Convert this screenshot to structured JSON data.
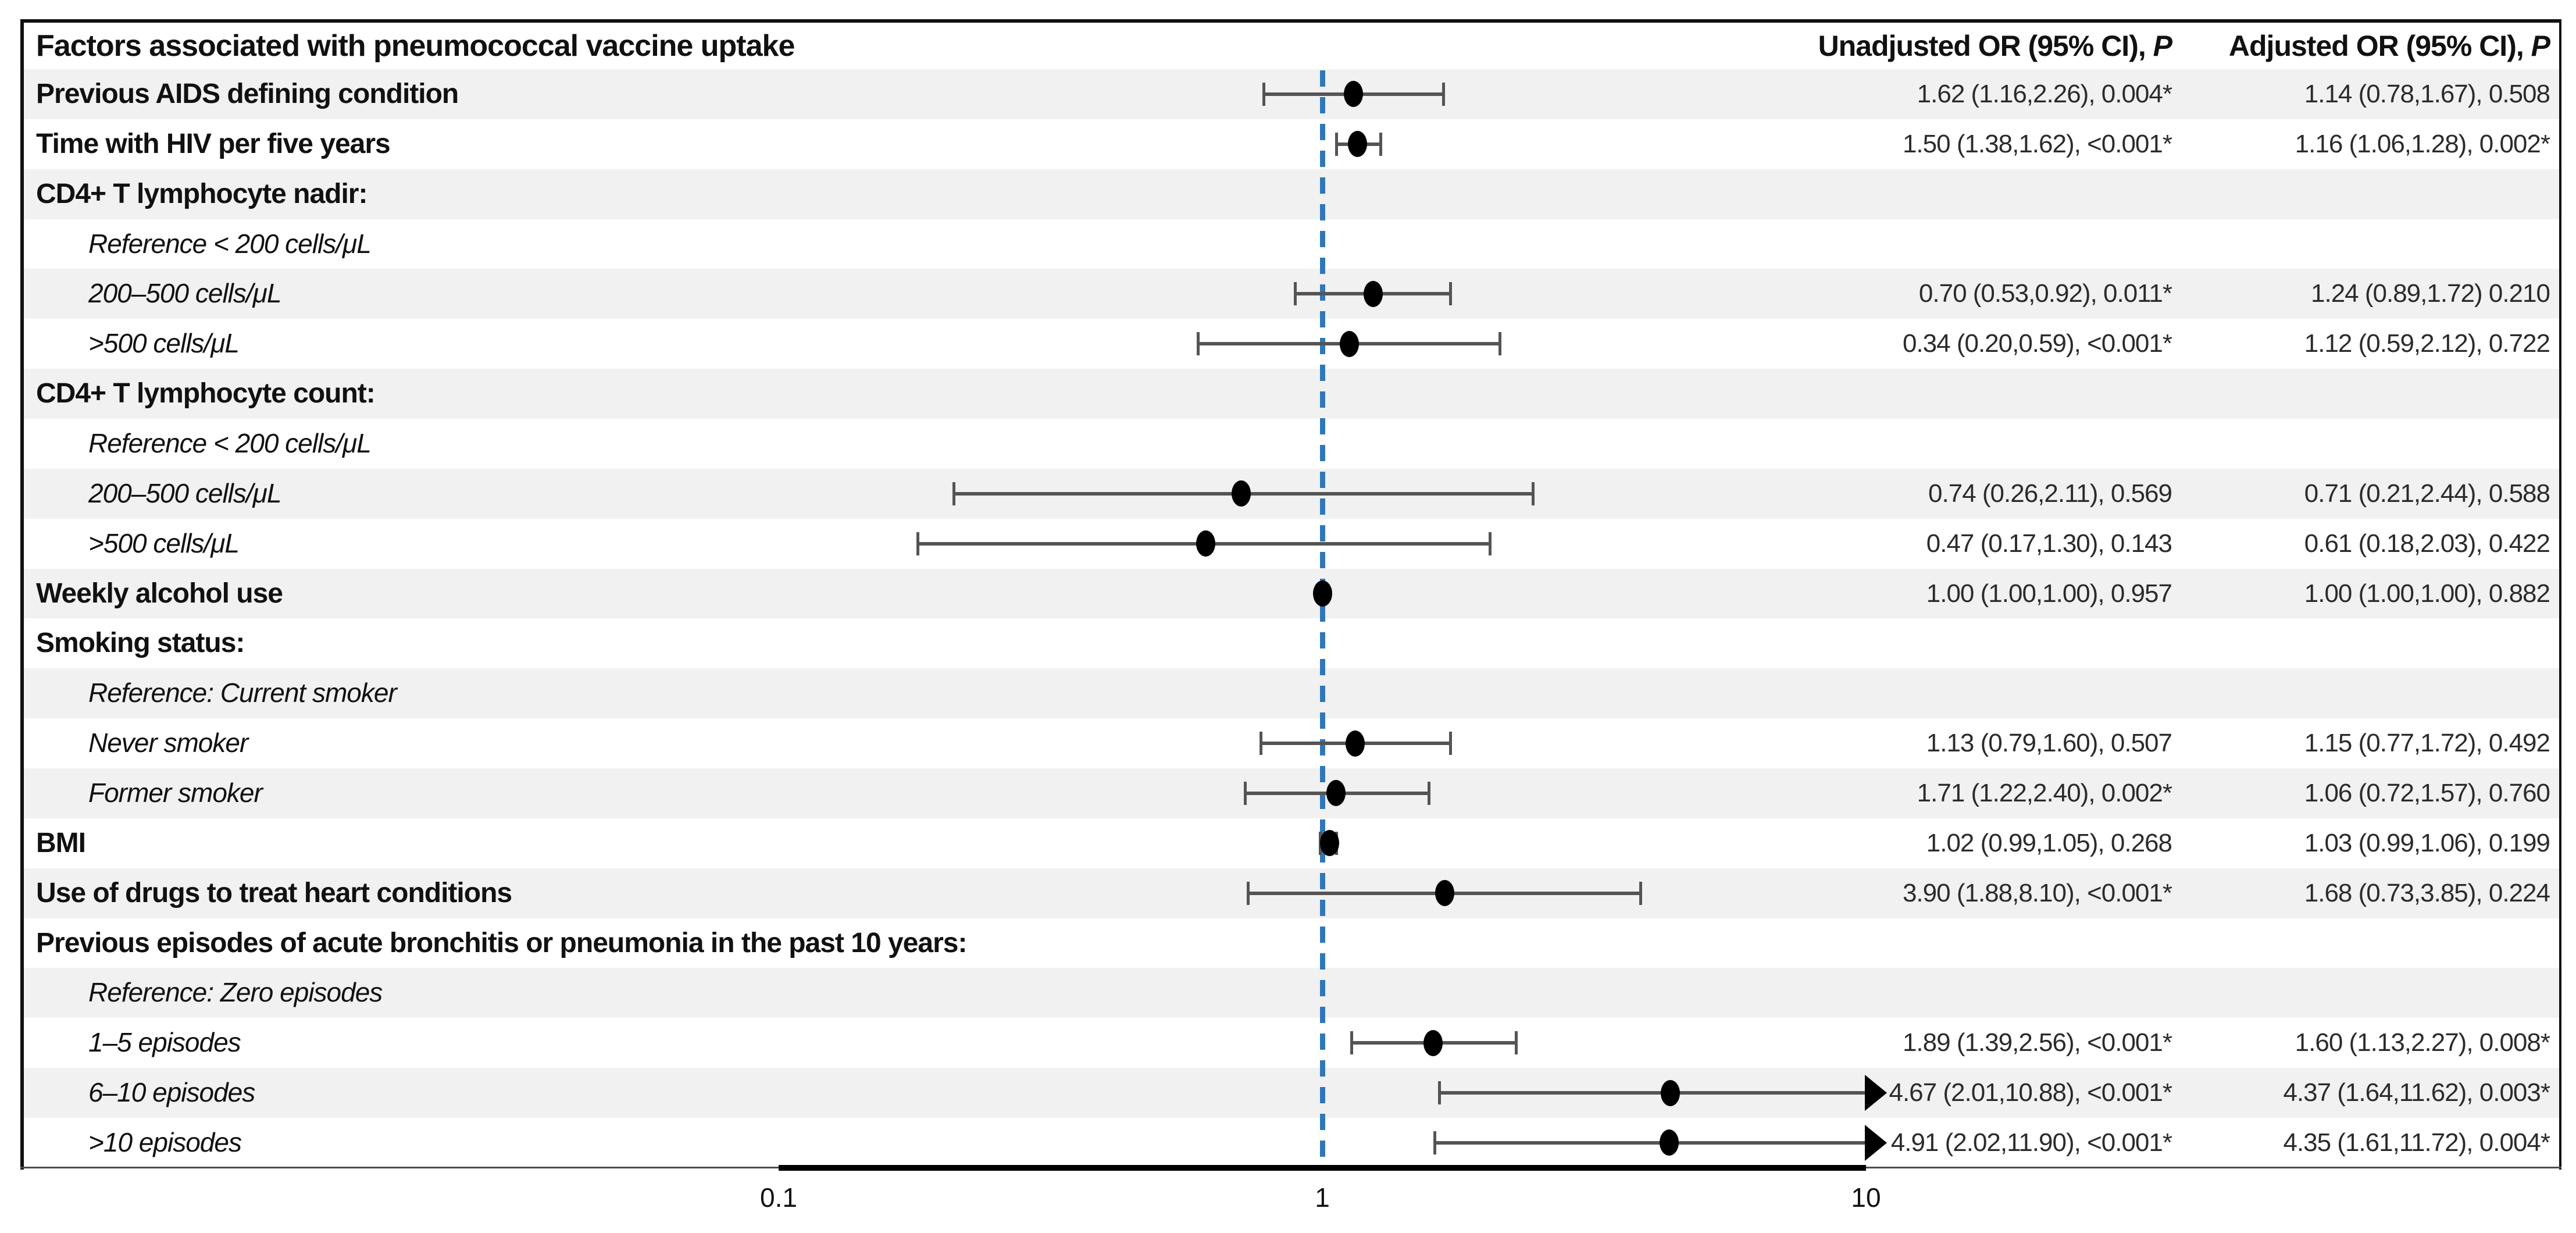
{
  "title": "Factors associated with pneumococcal vaccine uptake",
  "columns": {
    "unadjusted": {
      "prefix": "Unadjusted OR (95% CI), ",
      "p": "P"
    },
    "adjusted": {
      "prefix": "Adjusted OR (95% CI), ",
      "p": "P"
    }
  },
  "axis": {
    "scale": "log10",
    "ticks": [
      "0.1",
      "1",
      "10"
    ],
    "reference_value": 1
  },
  "colors": {
    "reference_line": "#2f77b8",
    "row_shade": "#f1f1f1",
    "marker_point": "#000000",
    "ci_line": "#545454",
    "border": "#111111"
  },
  "chart_data": {
    "type": "forest",
    "title": "Factors associated with pneumococcal vaccine uptake",
    "x_axis": {
      "scale": "log10",
      "ticks": [
        0.1,
        1,
        10
      ],
      "reference": 1,
      "range": [
        0.1,
        10
      ]
    },
    "plotted_estimate": "adjusted OR with 95% CI (arrow = CI clipped at 10)",
    "rows": [
      {
        "label": "Previous AIDS defining condition",
        "style": "bold",
        "shaded": true,
        "unadjusted": "1.62 (1.16,2.26), 0.004*",
        "adjusted": "1.14 (0.78,1.67), 0.508",
        "or": 1.14,
        "lo": 0.78,
        "hi": 1.67
      },
      {
        "label": "Time with HIV per five years",
        "style": "bold",
        "shaded": false,
        "unadjusted": "1.50 (1.38,1.62), <0.001*",
        "adjusted": "1.16 (1.06,1.28), 0.002*",
        "or": 1.16,
        "lo": 1.06,
        "hi": 1.28
      },
      {
        "label": "CD4+ T lymphocyte nadir:",
        "style": "bold",
        "shaded": true
      },
      {
        "label": "Reference < 200 cells/μL",
        "style": "sub",
        "shaded": false
      },
      {
        "label": "200–500 cells/μL",
        "style": "sub",
        "shaded": true,
        "unadjusted": "0.70 (0.53,0.92), 0.011*",
        "adjusted": "1.24 (0.89,1.72) 0.210",
        "or": 1.24,
        "lo": 0.89,
        "hi": 1.72
      },
      {
        "label": ">500 cells/μL",
        "style": "sub",
        "shaded": false,
        "unadjusted": "0.34 (0.20,0.59), <0.001*",
        "adjusted": "1.12 (0.59,2.12), 0.722",
        "or": 1.12,
        "lo": 0.59,
        "hi": 2.12
      },
      {
        "label": "CD4+ T lymphocyte count:",
        "style": "bold",
        "shaded": true
      },
      {
        "label": "Reference < 200 cells/μL",
        "style": "sub",
        "shaded": false
      },
      {
        "label": "200–500 cells/μL",
        "style": "sub",
        "shaded": true,
        "unadjusted": "0.74 (0.26,2.11), 0.569",
        "adjusted": "0.71 (0.21,2.44), 0.588",
        "or": 0.71,
        "lo": 0.21,
        "hi": 2.44
      },
      {
        "label": ">500 cells/μL",
        "style": "sub",
        "shaded": false,
        "unadjusted": "0.47 (0.17,1.30), 0.143",
        "adjusted": "0.61 (0.18,2.03), 0.422",
        "or": 0.61,
        "lo": 0.18,
        "hi": 2.03
      },
      {
        "label": "Weekly alcohol use",
        "style": "bold",
        "shaded": true,
        "unadjusted": "1.00 (1.00,1.00), 0.957",
        "adjusted": "1.00 (1.00,1.00), 0.882",
        "or": 1.0,
        "lo": 1.0,
        "hi": 1.0
      },
      {
        "label": "Smoking status:",
        "style": "bold",
        "shaded": false
      },
      {
        "label": "Reference: Current smoker",
        "style": "sub",
        "shaded": true
      },
      {
        "label": "Never smoker",
        "style": "sub",
        "shaded": false,
        "unadjusted": "1.13 (0.79,1.60), 0.507",
        "adjusted": "1.15 (0.77,1.72), 0.492",
        "or": 1.15,
        "lo": 0.77,
        "hi": 1.72
      },
      {
        "label": "Former smoker",
        "style": "sub",
        "shaded": true,
        "unadjusted": "1.71 (1.22,2.40), 0.002*",
        "adjusted": "1.06 (0.72,1.57), 0.760",
        "or": 1.06,
        "lo": 0.72,
        "hi": 1.57
      },
      {
        "label": "BMI",
        "style": "bold",
        "shaded": false,
        "unadjusted": "1.02 (0.99,1.05), 0.268",
        "adjusted": "1.03 (0.99,1.06), 0.199",
        "or": 1.03,
        "lo": 0.99,
        "hi": 1.06
      },
      {
        "label": "Use of drugs to treat heart conditions",
        "style": "bold",
        "shaded": true,
        "unadjusted": "3.90 (1.88,8.10), <0.001*",
        "adjusted": "1.68 (0.73,3.85), 0.224",
        "or": 1.68,
        "lo": 0.73,
        "hi": 3.85
      },
      {
        "label": "Previous episodes of acute bronchitis or pneumonia in the past 10 years:",
        "style": "bold",
        "shaded": false
      },
      {
        "label": "Reference: Zero episodes",
        "style": "sub",
        "shaded": true
      },
      {
        "label": "1–5 episodes",
        "style": "sub",
        "shaded": false,
        "unadjusted": "1.89 (1.39,2.56), <0.001*",
        "adjusted": "1.60 (1.13,2.27), 0.008*",
        "or": 1.6,
        "lo": 1.13,
        "hi": 2.27
      },
      {
        "label": "6–10 episodes",
        "style": "sub",
        "shaded": true,
        "unadjusted": "4.67 (2.01,10.88), <0.001*",
        "adjusted": "4.37 (1.64,11.62), 0.003*",
        "or": 4.37,
        "lo": 1.64,
        "hi": 11.62
      },
      {
        "label": ">10 episodes",
        "style": "sub",
        "shaded": false,
        "unadjusted": "4.91 (2.02,11.90), <0.001*",
        "adjusted": "4.35 (1.61,11.72), 0.004*",
        "or": 4.35,
        "lo": 1.61,
        "hi": 11.72
      }
    ]
  }
}
